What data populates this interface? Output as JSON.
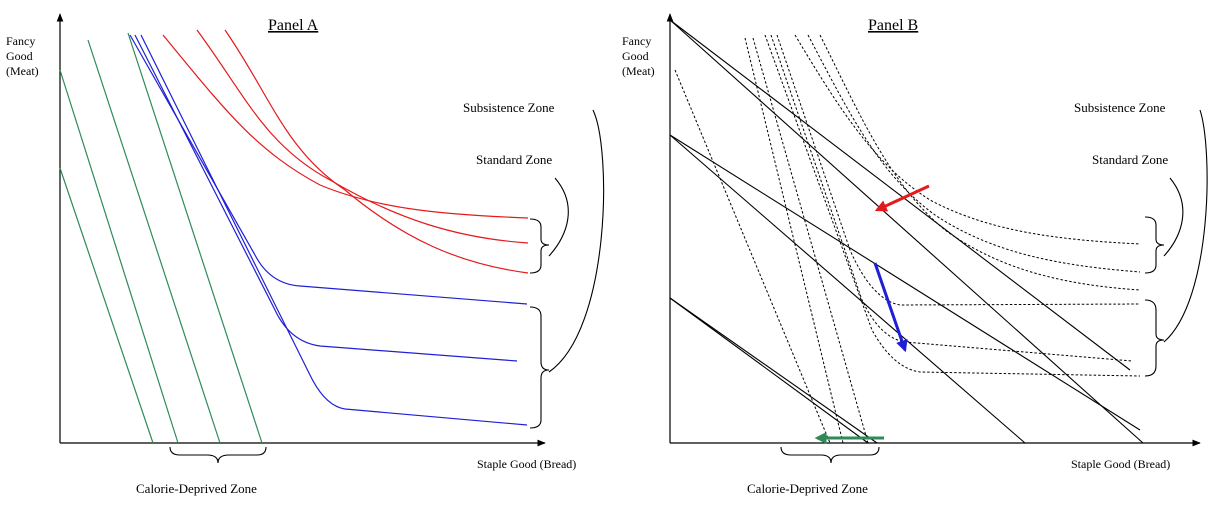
{
  "panels": {
    "a": {
      "title": "Panel A",
      "y_axis": [
        "Fancy",
        "Good",
        "(Meat)"
      ],
      "x_axis": "Staple Good (Bread)",
      "zones": {
        "subsistence": "Subsistence Zone",
        "standard": "Standard Zone",
        "calorie": "Calorie-Deprived Zone"
      }
    },
    "b": {
      "title": "Panel B",
      "y_axis": [
        "Fancy",
        "Good",
        "(Meat)"
      ],
      "x_axis": "Staple Good (Bread)",
      "zones": {
        "subsistence": "Subsistence Zone",
        "standard": "Standard Zone",
        "calorie": "Calorie-Deprived Zone"
      }
    }
  },
  "colors": {
    "axis": "#000000",
    "standard_curves": "#e41a1c",
    "subsistence_curves": "#1f1fd6",
    "calorie_curves": "#2e8b57",
    "arrow_red": "#e41a1c",
    "arrow_blue": "#1f1fd6",
    "arrow_green": "#2e8b57"
  }
}
